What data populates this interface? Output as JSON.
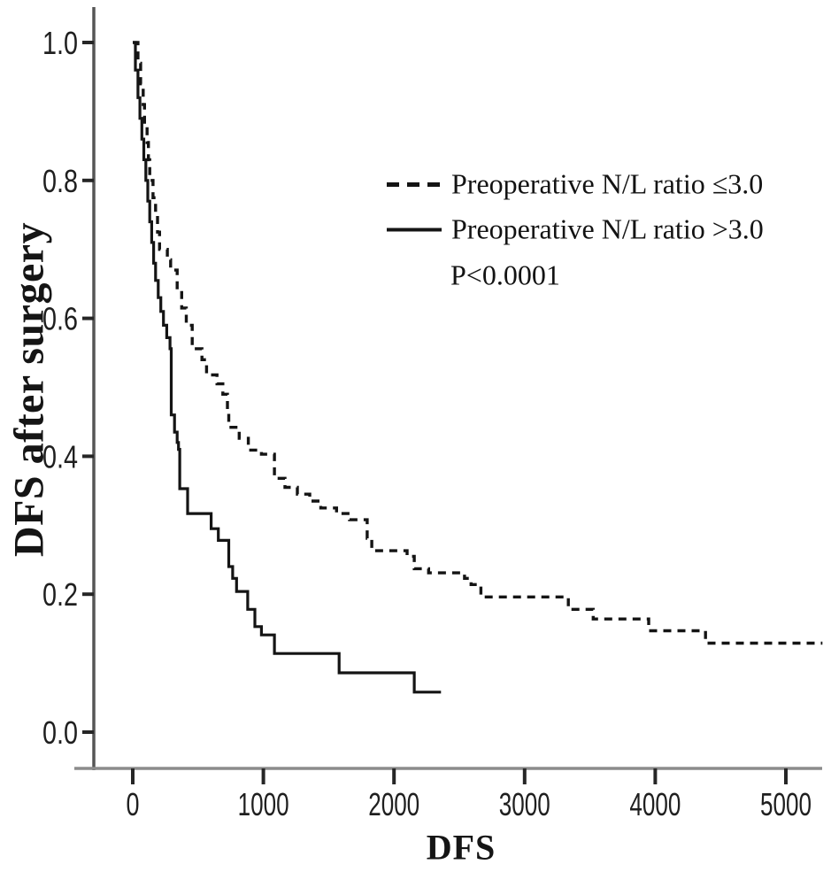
{
  "figure": {
    "background": "#ffffff",
    "ink": "#1a1a1a",
    "curve_color": "#141414",
    "axis_color_vertical": "#565656",
    "axis_color_horizontal": "#8c8c8c",
    "tick_color": "#262626"
  },
  "chart_data": {
    "type": "line",
    "subtype": "kaplan_meier_step",
    "title": "",
    "xlabel": "DFS",
    "ylabel": "DFS after surgery",
    "annotation": "P<0.0001",
    "grid": false,
    "legend_position": "inside-top-right",
    "xlim": [
      -300,
      5345
    ],
    "ylim": [
      -0.053,
      1.05
    ],
    "x_ticks": [
      0,
      1000,
      2000,
      3000,
      4000,
      5000
    ],
    "x_tick_labels": [
      "0",
      "1000",
      "2000",
      "3000",
      "4000",
      "5000"
    ],
    "y_tick_values": [
      1.0,
      0.8,
      0.6,
      0.4,
      0.2,
      0.0
    ],
    "y_tick_labels": [
      "1.0",
      "0.8",
      "0.6",
      "0.4",
      "0.2",
      "0.0"
    ],
    "series": [
      {
        "name": "Preoperative N/L ratio ≤3.0",
        "line_style": "dashed",
        "points": [
          [
            0,
            1.0
          ],
          [
            40,
            0.97
          ],
          [
            60,
            0.94
          ],
          [
            80,
            0.91
          ],
          [
            90,
            0.88
          ],
          [
            110,
            0.855
          ],
          [
            120,
            0.83
          ],
          [
            130,
            0.8
          ],
          [
            155,
            0.775
          ],
          [
            175,
            0.75
          ],
          [
            190,
            0.725
          ],
          [
            205,
            0.7
          ],
          [
            265,
            0.685
          ],
          [
            290,
            0.67
          ],
          [
            340,
            0.64
          ],
          [
            375,
            0.615
          ],
          [
            410,
            0.59
          ],
          [
            455,
            0.556
          ],
          [
            530,
            0.54
          ],
          [
            565,
            0.518
          ],
          [
            645,
            0.505
          ],
          [
            690,
            0.49
          ],
          [
            725,
            0.467
          ],
          [
            735,
            0.442
          ],
          [
            815,
            0.426
          ],
          [
            885,
            0.409
          ],
          [
            985,
            0.403
          ],
          [
            1085,
            0.368
          ],
          [
            1165,
            0.355
          ],
          [
            1260,
            0.345
          ],
          [
            1355,
            0.335
          ],
          [
            1440,
            0.325
          ],
          [
            1560,
            0.317
          ],
          [
            1660,
            0.308
          ],
          [
            1795,
            0.281
          ],
          [
            1830,
            0.263
          ],
          [
            2100,
            0.255
          ],
          [
            2155,
            0.237
          ],
          [
            2265,
            0.231
          ],
          [
            2540,
            0.223
          ],
          [
            2590,
            0.214
          ],
          [
            2665,
            0.196
          ],
          [
            3335,
            0.178
          ],
          [
            3525,
            0.164
          ],
          [
            3950,
            0.147
          ],
          [
            4385,
            0.129
          ],
          [
            5280,
            0.129
          ]
        ]
      },
      {
        "name": "Preoperative N/L ratio >3.0",
        "line_style": "solid",
        "points": [
          [
            0,
            1.0
          ],
          [
            20,
            0.96
          ],
          [
            40,
            0.92
          ],
          [
            55,
            0.89
          ],
          [
            70,
            0.86
          ],
          [
            85,
            0.83
          ],
          [
            100,
            0.8
          ],
          [
            115,
            0.77
          ],
          [
            130,
            0.74
          ],
          [
            145,
            0.71
          ],
          [
            160,
            0.68
          ],
          [
            175,
            0.655
          ],
          [
            195,
            0.63
          ],
          [
            215,
            0.61
          ],
          [
            235,
            0.59
          ],
          [
            260,
            0.572
          ],
          [
            285,
            0.556
          ],
          [
            295,
            0.46
          ],
          [
            320,
            0.435
          ],
          [
            340,
            0.42
          ],
          [
            350,
            0.41
          ],
          [
            360,
            0.353
          ],
          [
            420,
            0.317
          ],
          [
            600,
            0.295
          ],
          [
            655,
            0.278
          ],
          [
            735,
            0.24
          ],
          [
            765,
            0.223
          ],
          [
            795,
            0.204
          ],
          [
            880,
            0.178
          ],
          [
            935,
            0.153
          ],
          [
            985,
            0.141
          ],
          [
            1085,
            0.114
          ],
          [
            1580,
            0.086
          ],
          [
            2155,
            0.058
          ],
          [
            2360,
            0.058
          ]
        ]
      }
    ]
  }
}
